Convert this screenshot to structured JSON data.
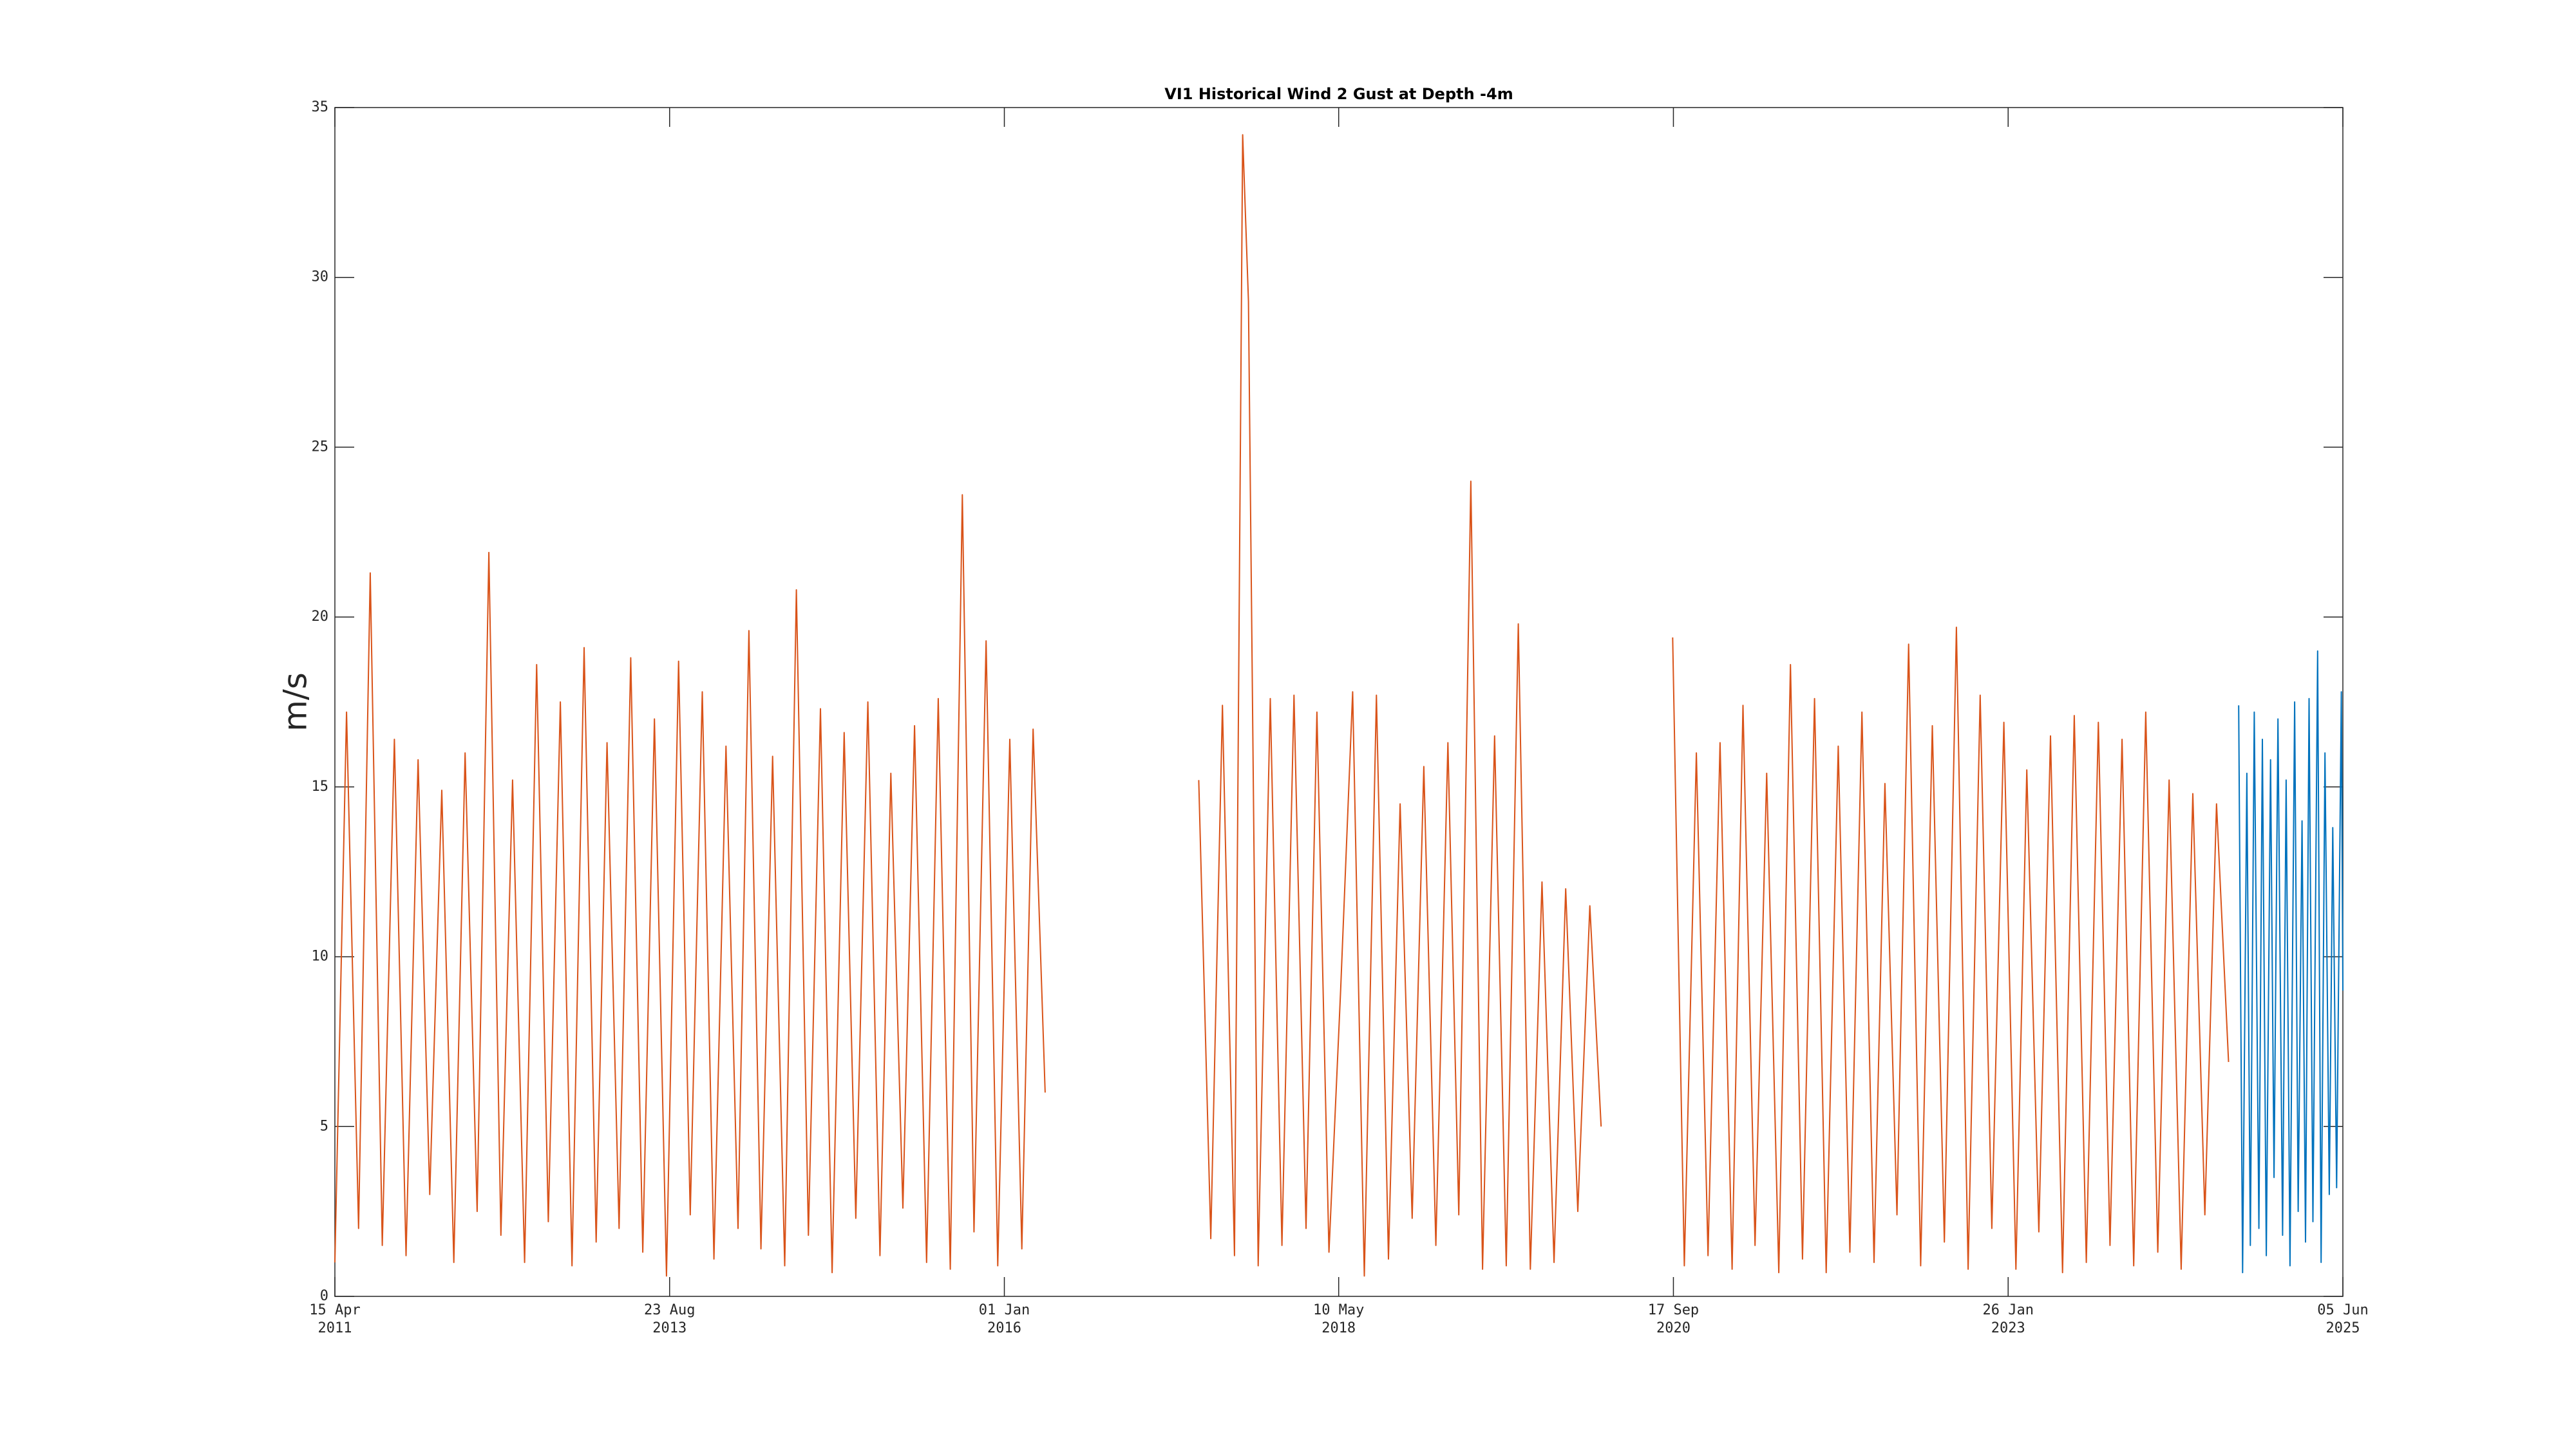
{
  "chart_data": {
    "type": "line",
    "title": "VI1 Historical Wind 2 Gust at Depth -4m",
    "y_label": "m/s",
    "xlim": [
      "2011-04-15",
      "2025-06-05"
    ],
    "xticks": [
      {
        "value": "2011-04-15",
        "label": "15 Apr\n2011"
      },
      {
        "value": "2013-08-23",
        "label": "23 Aug\n2013"
      },
      {
        "value": "2016-01-01",
        "label": "01 Jan\n2016"
      },
      {
        "value": "2018-05-10",
        "label": "10 May\n2018"
      },
      {
        "value": "2020-09-17",
        "label": "17 Sep\n2020"
      },
      {
        "value": "2023-01-26",
        "label": "26 Jan\n2023"
      },
      {
        "value": "2025-06-05",
        "label": "05 Jun\n2025"
      }
    ],
    "ylim": [
      0,
      35
    ],
    "yticks": [
      0,
      5,
      10,
      15,
      20,
      25,
      30,
      35
    ],
    "grid": false,
    "series": [
      {
        "color": "#D95319",
        "x": [
          "2011-04-15",
          "2011-05-15",
          "2011-06-15",
          "2011-07-15",
          "2011-08-15",
          "2011-09-15",
          "2011-10-15",
          "2011-11-15",
          "2011-12-15",
          "2012-01-15",
          "2012-02-15",
          "2012-03-15",
          "2012-04-15",
          "2012-05-15",
          "2012-06-15",
          "2012-07-15",
          "2012-08-15",
          "2012-09-15",
          "2012-10-15",
          "2012-11-15",
          "2012-12-15",
          "2013-01-15",
          "2013-02-15",
          "2013-03-15",
          "2013-04-15",
          "2013-05-15",
          "2013-06-15",
          "2013-07-15",
          "2013-08-15",
          "2013-09-15",
          "2013-10-15",
          "2013-11-15",
          "2013-12-15",
          "2014-01-15",
          "2014-02-15",
          "2014-03-15",
          "2014-04-15",
          "2014-05-15",
          "2014-06-15",
          "2014-07-15",
          "2014-08-15",
          "2014-09-15",
          "2014-10-15",
          "2014-11-15",
          "2014-12-15",
          "2015-01-15",
          "2015-02-15",
          "2015-03-15",
          "2015-04-15",
          "2015-05-15",
          "2015-06-15",
          "2015-07-15",
          "2015-08-15",
          "2015-09-15",
          "2015-10-15",
          "2015-11-15",
          "2015-12-15",
          "2016-01-15",
          "2016-02-15",
          "2016-03-15",
          "2016-04-15",
          "2016-10-15",
          "2017-05-15",
          "2017-06-15",
          "2017-07-15",
          "2017-08-15",
          "2017-09-05",
          "2017-09-20",
          "2017-10-15",
          "2017-11-15",
          "2017-12-15",
          "2018-01-15",
          "2018-02-15",
          "2018-03-15",
          "2018-04-15",
          "2018-05-15",
          "2018-06-15",
          "2018-07-15",
          "2018-08-15",
          "2018-09-15",
          "2018-10-15",
          "2018-11-15",
          "2018-12-15",
          "2019-01-15",
          "2019-02-15",
          "2019-03-15",
          "2019-04-15",
          "2019-05-15",
          "2019-06-15",
          "2019-07-15",
          "2019-08-15",
          "2019-09-15",
          "2019-10-15",
          "2019-11-15",
          "2019-12-15",
          "2020-01-15",
          "2020-02-15",
          "2020-03-15",
          "2020-06-15",
          "2020-09-15",
          "2020-10-15",
          "2020-11-15",
          "2020-12-15",
          "2021-01-15",
          "2021-02-15",
          "2021-03-15",
          "2021-04-15",
          "2021-05-15",
          "2021-06-15",
          "2021-07-15",
          "2021-08-15",
          "2021-09-15",
          "2021-10-15",
          "2021-11-15",
          "2021-12-15",
          "2022-01-15",
          "2022-02-15",
          "2022-03-15",
          "2022-04-15",
          "2022-05-15",
          "2022-06-15",
          "2022-07-15",
          "2022-08-15",
          "2022-09-15",
          "2022-10-15",
          "2022-11-15",
          "2022-12-15",
          "2023-01-15",
          "2023-02-15",
          "2023-03-15",
          "2023-04-15",
          "2023-05-15",
          "2023-06-15",
          "2023-07-15",
          "2023-08-15",
          "2023-09-15",
          "2023-10-15",
          "2023-11-15",
          "2023-12-15",
          "2024-01-15",
          "2024-02-15",
          "2024-03-15",
          "2024-04-15",
          "2024-05-15",
          "2024-06-15",
          "2024-07-15",
          "2024-08-15"
        ],
        "values": [
          1.0,
          17.2,
          2.0,
          21.3,
          1.5,
          16.4,
          1.2,
          15.8,
          3.0,
          14.9,
          1.0,
          16.0,
          2.5,
          21.9,
          1.8,
          15.2,
          1.0,
          18.6,
          2.2,
          17.5,
          0.9,
          19.1,
          1.6,
          16.3,
          2.0,
          18.8,
          1.3,
          17.0,
          0.6,
          18.7,
          2.4,
          17.8,
          1.1,
          16.2,
          2.0,
          19.6,
          1.4,
          15.9,
          0.9,
          20.8,
          1.8,
          17.3,
          0.7,
          16.6,
          2.3,
          17.5,
          1.2,
          15.4,
          2.6,
          16.8,
          1.0,
          17.6,
          0.8,
          23.6,
          1.9,
          19.3,
          0.9,
          16.4,
          1.4,
          16.7,
          6.0,
          null,
          15.2,
          1.7,
          17.4,
          1.2,
          34.2,
          29.3,
          0.9,
          17.6,
          1.5,
          17.7,
          2.0,
          17.2,
          1.3,
          9.0,
          17.8,
          0.6,
          17.7,
          1.1,
          14.5,
          2.3,
          15.6,
          1.5,
          16.3,
          2.4,
          24.0,
          0.8,
          16.5,
          0.9,
          19.8,
          0.8,
          12.2,
          1.0,
          12.0,
          2.5,
          11.5,
          5.0,
          null,
          19.4,
          0.9,
          16.0,
          1.2,
          16.3,
          0.8,
          17.4,
          1.5,
          15.4,
          0.7,
          18.6,
          1.1,
          17.6,
          0.7,
          16.2,
          1.3,
          17.2,
          1.0,
          15.1,
          2.4,
          19.2,
          0.9,
          16.8,
          1.6,
          19.7,
          0.8,
          17.7,
          2.0,
          16.9,
          0.8,
          15.5,
          1.9,
          16.5,
          0.7,
          17.1,
          1.0,
          16.9,
          1.5,
          16.4,
          0.9,
          17.2,
          1.3,
          15.2,
          0.8,
          14.8,
          2.4,
          14.5,
          6.9
        ]
      },
      {
        "color": "#0072BD",
        "x": [
          "2024-09-10",
          "2024-09-20",
          "2024-10-01",
          "2024-10-10",
          "2024-10-20",
          "2024-11-01",
          "2024-11-10",
          "2024-11-20",
          "2024-12-01",
          "2024-12-10",
          "2024-12-20",
          "2025-01-01",
          "2025-01-10",
          "2025-01-20",
          "2025-02-01",
          "2025-02-10",
          "2025-02-20",
          "2025-03-01",
          "2025-03-10",
          "2025-03-20",
          "2025-04-01",
          "2025-04-10",
          "2025-04-20",
          "2025-05-01",
          "2025-05-10",
          "2025-05-20",
          "2025-06-01",
          "2025-06-05"
        ],
        "values": [
          17.4,
          0.7,
          15.4,
          1.5,
          17.2,
          2.0,
          16.4,
          1.2,
          15.8,
          3.5,
          17.0,
          1.8,
          15.2,
          0.9,
          17.5,
          2.5,
          14.0,
          1.6,
          17.6,
          2.2,
          19.0,
          1.0,
          16.0,
          3.0,
          13.8,
          3.2,
          17.8,
          9.0
        ]
      }
    ]
  }
}
